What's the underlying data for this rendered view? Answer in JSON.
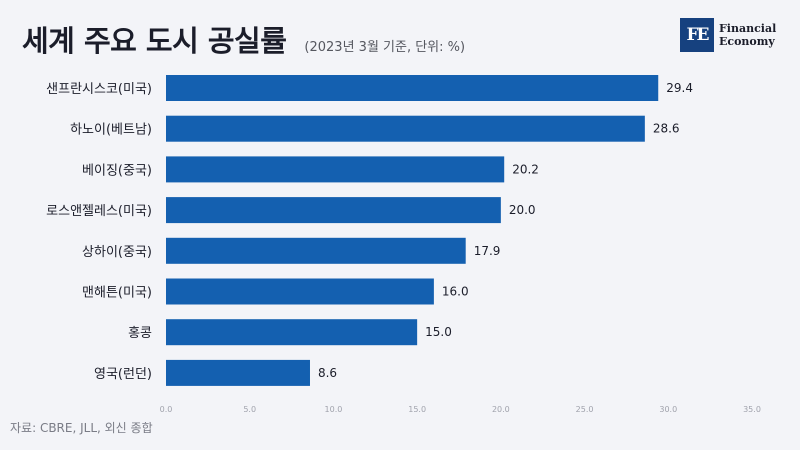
{
  "header": {
    "title": "세계 주요 도시 공실률",
    "subtitle": "(2023년 3월 기준, 단위: %)"
  },
  "logo": {
    "mark": "FE",
    "line1": "Financial",
    "line2": "Economy"
  },
  "source": "자료: CBRE, JLL, 외신 종합",
  "colors": {
    "bar": "#1460b0",
    "background": "#f3f4f8"
  },
  "chart_data": {
    "type": "bar",
    "orientation": "horizontal",
    "categories": [
      "샌프란시스코(미국)",
      "하노이(베트남)",
      "베이징(중국)",
      "로스앤젤레스(미국)",
      "상하이(중국)",
      "맨해튼(미국)",
      "홍콩",
      "영국(런던)"
    ],
    "values": [
      29.4,
      28.6,
      20.2,
      20.0,
      17.9,
      16.0,
      15.0,
      8.6
    ],
    "value_labels": [
      "29.4",
      "28.6",
      "20.2",
      "20.0",
      "17.9",
      "16.0",
      "15.0",
      "8.6"
    ],
    "xlim": [
      0,
      35
    ],
    "x_ticks": [
      0,
      5,
      10,
      15,
      20,
      25,
      30,
      35
    ],
    "x_tick_labels": [
      "0.0",
      "5.0",
      "10.0",
      "15.0",
      "20.0",
      "25.0",
      "30.0",
      "35.0"
    ],
    "grid": false,
    "legend": "none"
  }
}
